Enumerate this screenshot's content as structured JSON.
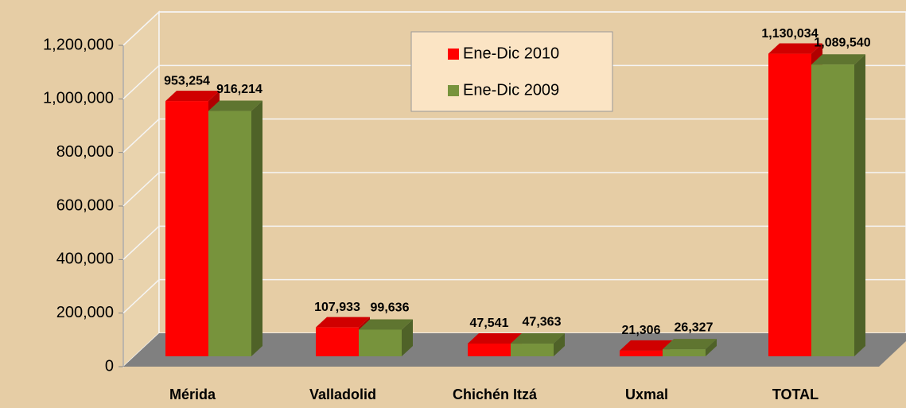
{
  "chart_data": {
    "type": "bar3d",
    "categories": [
      "Mérida",
      "Valladolid",
      "Chichén Itzá",
      "Uxmal",
      "TOTAL"
    ],
    "series": [
      {
        "name": "Ene-Dic 2010",
        "color": "#ff0000",
        "side": "#b00000",
        "values": [
          953254,
          107933,
          47541,
          21306,
          1130034
        ],
        "value_labels": [
          "953,254",
          "107,933",
          "47,541",
          "21,306",
          "1,130,034"
        ]
      },
      {
        "name": "Ene-Dic 2009",
        "color": "#77933c",
        "side": "#4f6228",
        "values": [
          916214,
          99636,
          47363,
          26327,
          1089540
        ],
        "value_labels": [
          "916,214",
          "99,636",
          "47,363",
          "26,327",
          "1,089,540"
        ]
      }
    ],
    "ylim": [
      0,
      1200000
    ],
    "yticks": [
      0,
      {
        "value": 200000,
        "label": "200,000"
      },
      {
        "value": 400000,
        "label": "400,000"
      },
      {
        "value": 600000,
        "label": "600,000"
      },
      {
        "value": 800000,
        "label": "800,000"
      },
      {
        "value": 1000000,
        "label": "1,000,000"
      },
      {
        "value": 1200000,
        "label": "1,200,000"
      }
    ],
    "grid": true,
    "legend": "top"
  }
}
